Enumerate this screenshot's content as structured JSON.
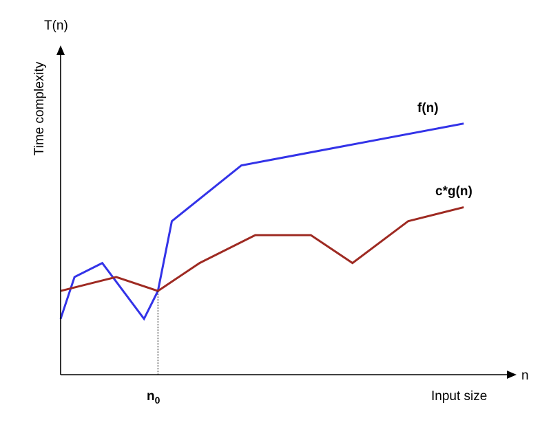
{
  "chart_data": {
    "type": "line",
    "title": "",
    "xlim": [
      0,
      16.4
    ],
    "ylim": [
      0,
      11.8
    ],
    "axes": {
      "y_symbol": "T(n)",
      "y_label": "Time complexity",
      "x_symbol": "n",
      "x_label": "Input size"
    },
    "x_marker": {
      "base": "n",
      "subscript": "0",
      "x": 3.5
    },
    "series": [
      {
        "name": "f(n)",
        "color": "#3333e8",
        "points": [
          [
            0,
            2
          ],
          [
            0.5,
            3.5
          ],
          [
            1.5,
            4
          ],
          [
            3,
            2
          ],
          [
            3.5,
            3
          ],
          [
            4,
            5.5
          ],
          [
            6.5,
            7.5
          ],
          [
            14.5,
            9
          ]
        ]
      },
      {
        "name": "c*g(n)",
        "color": "#9e2a22",
        "points": [
          [
            0,
            3
          ],
          [
            2,
            3.5
          ],
          [
            3.5,
            3
          ],
          [
            5,
            4
          ],
          [
            7,
            5
          ],
          [
            9,
            5
          ],
          [
            10.5,
            4
          ],
          [
            12.5,
            5.5
          ],
          [
            14.5,
            6
          ]
        ]
      }
    ]
  }
}
